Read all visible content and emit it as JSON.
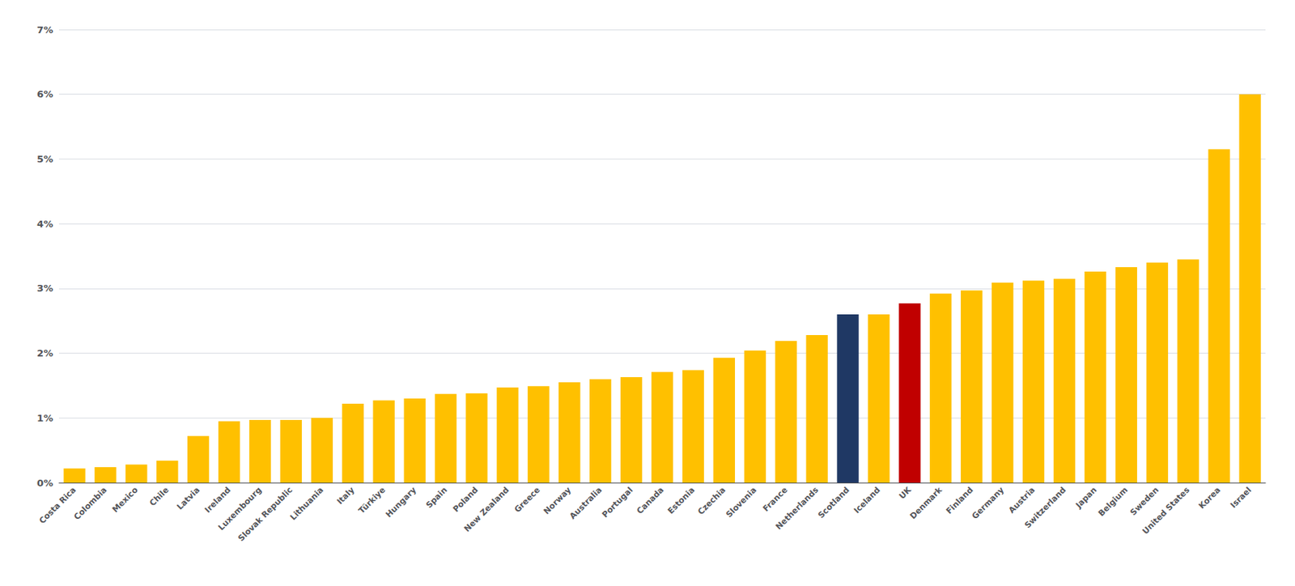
{
  "chart_data": {
    "type": "bar",
    "categories": [
      "Costa Rica",
      "Colombia",
      "Mexico",
      "Chile",
      "Latvia",
      "Ireland",
      "Luxembourg",
      "Slovak Republic",
      "Lithuania",
      "Italy",
      "Türkiye",
      "Hungary",
      "Spain",
      "Poland",
      "New Zealand",
      "Greece",
      "Norway",
      "Australia",
      "Portugal",
      "Canada",
      "Estonia",
      "Czechia",
      "Slovenia",
      "France",
      "Netherlands",
      "Scotland",
      "Iceland",
      "UK",
      "Denmark",
      "Finland",
      "Germany",
      "Austria",
      "Switzerland",
      "Japan",
      "Belgium",
      "Sweden",
      "United States",
      "Korea",
      "Israel"
    ],
    "values": [
      0.22,
      0.24,
      0.28,
      0.34,
      0.72,
      0.95,
      0.97,
      0.97,
      1.0,
      1.22,
      1.27,
      1.3,
      1.37,
      1.38,
      1.47,
      1.49,
      1.55,
      1.6,
      1.63,
      1.71,
      1.74,
      1.93,
      2.04,
      2.19,
      2.28,
      2.6,
      2.6,
      2.77,
      2.92,
      2.97,
      3.09,
      3.12,
      3.15,
      3.26,
      3.33,
      3.4,
      3.45,
      5.15,
      6.0
    ],
    "colors": [
      "#FFC000",
      "#FFC000",
      "#FFC000",
      "#FFC000",
      "#FFC000",
      "#FFC000",
      "#FFC000",
      "#FFC000",
      "#FFC000",
      "#FFC000",
      "#FFC000",
      "#FFC000",
      "#FFC000",
      "#FFC000",
      "#FFC000",
      "#FFC000",
      "#FFC000",
      "#FFC000",
      "#FFC000",
      "#FFC000",
      "#FFC000",
      "#FFC000",
      "#FFC000",
      "#FFC000",
      "#FFC000",
      "#1F3864",
      "#FFC000",
      "#C00000",
      "#FFC000",
      "#FFC000",
      "#FFC000",
      "#FFC000",
      "#FFC000",
      "#FFC000",
      "#FFC000",
      "#FFC000",
      "#FFC000",
      "#FFC000",
      "#FFC000"
    ],
    "ylim": [
      0,
      7
    ],
    "yticks": [
      {
        "value": 0,
        "label": "0%"
      },
      {
        "value": 1,
        "label": "1%"
      },
      {
        "value": 2,
        "label": "2%"
      },
      {
        "value": 3,
        "label": "3%"
      },
      {
        "value": 4,
        "label": "4%"
      },
      {
        "value": 5,
        "label": "5%"
      },
      {
        "value": 6,
        "label": "6%"
      },
      {
        "value": 7,
        "label": "7%"
      }
    ],
    "grid": true
  }
}
